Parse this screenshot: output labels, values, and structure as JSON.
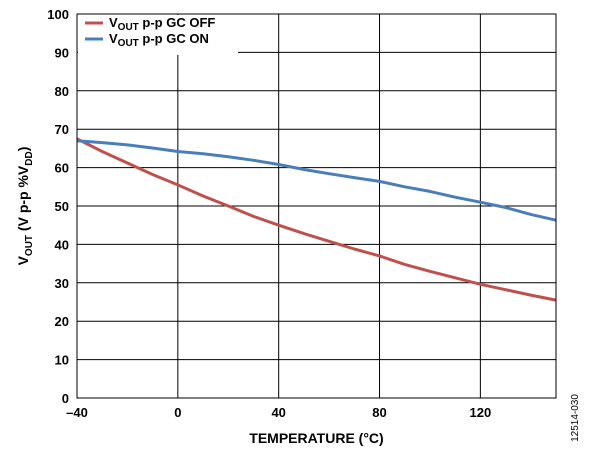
{
  "chart_data": {
    "type": "line",
    "xlabel": "TEMPERATURE (°C)",
    "ylabel": {
      "main": "V",
      "sub1": "OUT",
      "rest": " (V p-p %V",
      "sub2": "DD",
      "end": ")"
    },
    "xlim": [
      -40,
      150
    ],
    "ylim": [
      0,
      100
    ],
    "xticks": [
      -40,
      0,
      40,
      80,
      120
    ],
    "xtick_labels": [
      "–40",
      "0",
      "40",
      "80",
      "120"
    ],
    "yticks": [
      0,
      10,
      20,
      30,
      40,
      50,
      60,
      70,
      80,
      90,
      100
    ],
    "grid": true,
    "legend_position": "top-left",
    "series": [
      {
        "name": "GC OFF",
        "legend": {
          "main": "V",
          "sub": "OUT",
          "rest": " p-p GC OFF"
        },
        "color": "#c0504d",
        "x": [
          -40,
          -30,
          -20,
          -10,
          0,
          10,
          20,
          30,
          40,
          50,
          60,
          70,
          80,
          90,
          100,
          110,
          120,
          130,
          140,
          150
        ],
        "y": [
          67.5,
          64.2,
          61.2,
          58.2,
          55.5,
          52.6,
          50.0,
          47.3,
          45.0,
          42.8,
          40.8,
          38.8,
          37.0,
          34.8,
          33.0,
          31.3,
          29.6,
          28.2,
          26.8,
          25.5
        ]
      },
      {
        "name": "GC ON",
        "legend": {
          "main": "V",
          "sub": "OUT",
          "rest": " p-p GC ON"
        },
        "color": "#4a7ebb",
        "x": [
          -40,
          -30,
          -20,
          -10,
          0,
          10,
          20,
          30,
          40,
          50,
          60,
          70,
          80,
          90,
          100,
          110,
          120,
          130,
          140,
          150
        ],
        "y": [
          67.0,
          66.5,
          65.9,
          65.1,
          64.2,
          63.6,
          62.8,
          61.9,
          60.8,
          59.5,
          58.4,
          57.4,
          56.4,
          55.0,
          53.8,
          52.3,
          51.0,
          49.6,
          47.8,
          46.3
        ]
      }
    ]
  },
  "figure_id": "12514-030"
}
